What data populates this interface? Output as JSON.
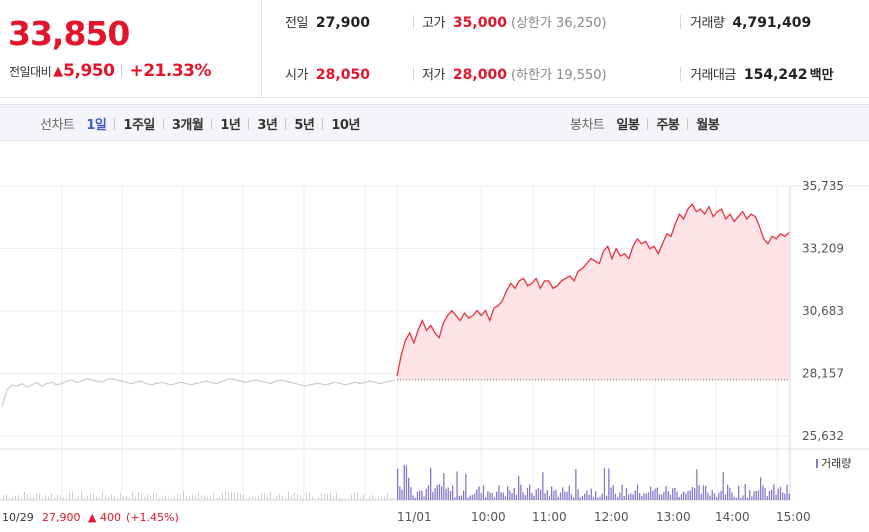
{
  "summary": {
    "current_price": "33,850",
    "change_label": "전일대비",
    "change_arrow": "▲",
    "change_amount": "5,950",
    "change_rate": "+21.33%",
    "stats": {
      "prev_close": {
        "label": "전일",
        "value": "27,900"
      },
      "open": {
        "label": "시가",
        "value": "28,050"
      },
      "high": {
        "label": "고가",
        "value": "35,000",
        "sub_label": "(상한가",
        "sub_value": "36,250",
        "sub_close": ")"
      },
      "low": {
        "label": "저가",
        "value": "28,000",
        "sub_label": "(하한가",
        "sub_value": "19,550",
        "sub_close": ")"
      },
      "volume": {
        "label": "거래량",
        "value": "4,791,409"
      },
      "trade_value": {
        "label": "거래대금",
        "value": "154,242",
        "unit": "백만"
      }
    }
  },
  "toolbar": {
    "line_chart_title": "선차트",
    "periods": [
      "1일",
      "1주일",
      "3개월",
      "1년",
      "3년",
      "5년",
      "10년"
    ],
    "active_period": "1일",
    "candle_chart_title": "봉차트",
    "candle_periods": [
      "일봉",
      "주봉",
      "월봉"
    ]
  },
  "chart_data": {
    "type": "line",
    "y_ticks": [
      "35,735",
      "33,209",
      "30,683",
      "28,157",
      "25,632"
    ],
    "y_tick_values": [
      35735,
      33209,
      30683,
      28157,
      25632
    ],
    "ylim": [
      25632,
      35735
    ],
    "x_ticks": [
      "11/01",
      "10:00",
      "11:00",
      "12:00",
      "13:00",
      "14:00",
      "15:00"
    ],
    "prev_close_line": 27900,
    "colors": {
      "today": "#e8323c",
      "today_fill": "#fde3e5",
      "prev_day": "#cccccc",
      "volume": "#8877c9",
      "volume_prev": "#cfcfcf",
      "grid": "#ececec",
      "baseline_dots": "#666666"
    },
    "series": [
      {
        "key": "prev_day",
        "values": [
          26800,
          27500,
          27700,
          27650,
          27750,
          27600,
          27700,
          27800,
          27650,
          27750,
          27800,
          27700,
          27750,
          27850,
          27900,
          27800,
          27850,
          27950,
          27900,
          27850,
          27800,
          27900,
          27950,
          27900,
          27850,
          27800,
          27750,
          27800,
          27850,
          27750,
          27700,
          27750,
          27800,
          27750,
          27700,
          27750,
          27800,
          27750,
          27700,
          27750,
          27800,
          27850,
          27800,
          27750,
          27800,
          27900,
          27950,
          27900,
          27850,
          27800,
          27850,
          27900,
          27850,
          27800,
          27750,
          27850,
          27900,
          27850,
          27800,
          27750,
          27700,
          27650,
          27700,
          27750,
          27750,
          27700,
          27750,
          27800,
          27750,
          27700,
          27750,
          27800,
          27750,
          27800,
          27850,
          27800,
          27750,
          27800,
          27850,
          27900
        ]
      },
      {
        "key": "today",
        "values": [
          28050,
          28900,
          29500,
          29800,
          29400,
          29900,
          30300,
          29900,
          30100,
          29800,
          29600,
          30200,
          30500,
          30700,
          30500,
          30300,
          30600,
          30400,
          30500,
          30700,
          30500,
          30700,
          30300,
          30800,
          30900,
          31100,
          31500,
          31800,
          31600,
          31900,
          32000,
          31700,
          31800,
          32000,
          31600,
          31900,
          31900,
          31600,
          31700,
          31900,
          32000,
          32100,
          31900,
          32300,
          32400,
          32600,
          32800,
          32700,
          32600,
          33100,
          33300,
          32800,
          33200,
          32900,
          33000,
          32800,
          33300,
          33600,
          33400,
          33500,
          33200,
          33300,
          33000,
          33400,
          33800,
          33700,
          34200,
          34600,
          34400,
          34800,
          35000,
          34700,
          34800,
          34600,
          34900,
          34500,
          34700,
          34800,
          34400,
          34600,
          34300,
          34500,
          34700,
          34400,
          34600,
          34500,
          34100,
          33600,
          33400,
          33700,
          33600,
          33800,
          33700,
          33850
        ]
      }
    ],
    "legend": "거래량",
    "footer": {
      "date": "10/29",
      "close": "27,900",
      "arrow": "▲",
      "change": "400",
      "rate": "(+1.45%)"
    }
  }
}
